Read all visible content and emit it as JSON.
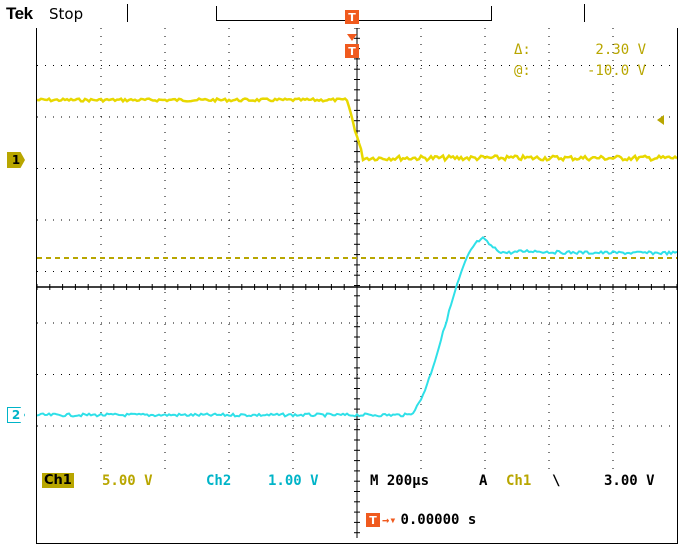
{
  "header": {
    "brand": "Tek",
    "run_state": "Stop"
  },
  "cursor_readout": {
    "delta_label": "Δ:",
    "delta_value": "2.30 V",
    "at_label": "@:",
    "at_value": "-10.0 V"
  },
  "markers": {
    "ch1": "1",
    "ch2": "2",
    "trigger": "T"
  },
  "status": {
    "ch1_label": "Ch1",
    "ch1_scale": "5.00 V",
    "ch2_label": "Ch2",
    "ch2_scale": "1.00 V",
    "timebase": "M 200µs",
    "trigger_mode": "A",
    "trigger_source": "Ch1",
    "trigger_slope_symbol": "\\",
    "trigger_level": "3.00 V",
    "trigger_offset": "0.00000 s"
  },
  "colors": {
    "ch1": "#e8d800",
    "ch2": "#2fe0e8",
    "trigger": "#f05a1e",
    "grid": "#000000"
  }
}
